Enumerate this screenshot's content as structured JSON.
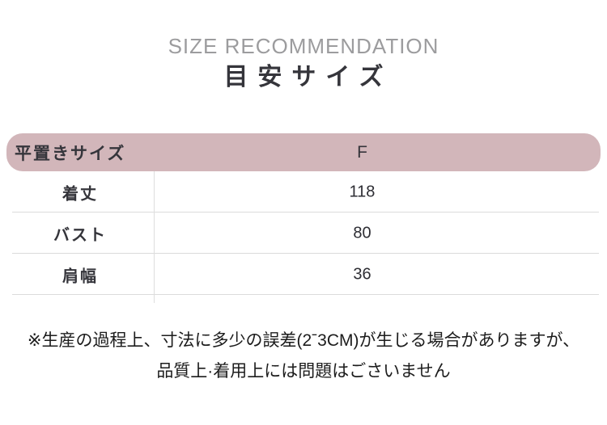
{
  "header": {
    "subtitle": "SIZE RECOMMENDATION",
    "title": "目安サイズ"
  },
  "table": {
    "header": {
      "label": "平置きサイズ",
      "size_label": "F"
    },
    "rows": [
      {
        "label": "着丈",
        "value": "118"
      },
      {
        "label": "バスト",
        "value": "80"
      },
      {
        "label": "肩幅",
        "value": "36"
      }
    ]
  },
  "note": {
    "line1": "※生産の過程上、寸法に多少の誤差(2ˉ3CM)が生じる場合がありますが、",
    "line2": "品質上·着用上には問題はごさいません"
  },
  "colors": {
    "accent_pink": "#d2b6ba",
    "heading_gray": "#9c9c9e",
    "text_dark": "#35353b",
    "note_text": "#1c1c1c",
    "divider": "#dbdbdb"
  }
}
